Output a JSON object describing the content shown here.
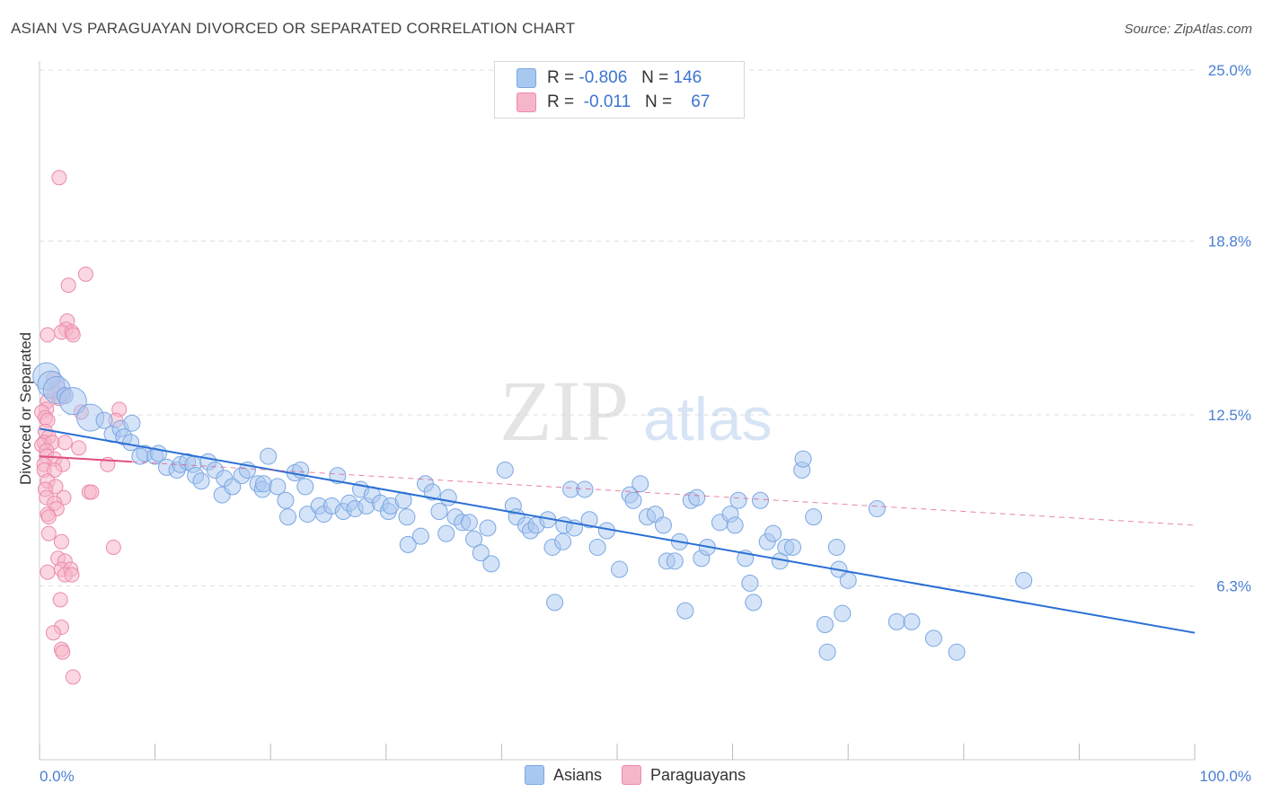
{
  "title": "ASIAN VS PARAGUAYAN DIVORCED OR SEPARATED CORRELATION CHART",
  "source": "Source: ZipAtlas.com",
  "watermark": {
    "zip": "ZIP",
    "atlas": "atlas"
  },
  "legend": {
    "asians": {
      "r_label": "R =",
      "r_value": "-0.806",
      "n_label": "N =",
      "n_value": "146"
    },
    "paraguayans": {
      "r_label": "R =",
      "r_value": "-0.011",
      "n_label": "N =",
      "n_value": "67"
    }
  },
  "bottom_legend": {
    "asians": "Asians",
    "paraguayans": "Paraguayans"
  },
  "colors": {
    "asian_fill": "#a9c8ef",
    "asian_stroke": "#7aa7e3",
    "asian_line": "#2a6fd4",
    "para_fill": "#f6b6c9",
    "para_stroke": "#ec8aab",
    "para_line": "#e0507f",
    "grid": "#dddddd",
    "tick_text": "#4a7fd4"
  },
  "chart_data": {
    "type": "scatter",
    "title": "ASIAN VS PARAGUAYAN DIVORCED OR SEPARATED CORRELATION CHART",
    "xlabel": "",
    "ylabel": "Divorced or Separated",
    "xlim": [
      0,
      100
    ],
    "ylim": [
      0,
      25.6
    ],
    "x_tick_labels": [
      "0.0%",
      "100.0%"
    ],
    "y_ticks": [
      6.3,
      12.5,
      18.8,
      25.0
    ],
    "y_tick_labels": [
      "6.3%",
      "12.5%",
      "18.8%",
      "25.0%"
    ],
    "grid": true,
    "series": [
      {
        "name": "Asians",
        "trend": {
          "x": [
            0,
            100
          ],
          "y": [
            12.0,
            4.6
          ]
        },
        "points": [
          [
            0.6,
            13.9
          ],
          [
            1.0,
            13.6
          ],
          [
            1.5,
            13.4
          ],
          [
            2.2,
            13.2
          ],
          [
            2.9,
            13.0
          ],
          [
            4.4,
            12.4
          ],
          [
            5.6,
            12.3
          ],
          [
            6.3,
            11.8
          ],
          [
            7.0,
            12.0
          ],
          [
            7.3,
            11.7
          ],
          [
            8.0,
            12.2
          ],
          [
            7.9,
            11.5
          ],
          [
            9.1,
            11.1
          ],
          [
            8.7,
            11.0
          ],
          [
            10.0,
            11.0
          ],
          [
            10.3,
            11.1
          ],
          [
            11.0,
            10.6
          ],
          [
            11.9,
            10.5
          ],
          [
            12.2,
            10.7
          ],
          [
            12.8,
            10.8
          ],
          [
            13.3,
            10.7
          ],
          [
            13.5,
            10.3
          ],
          [
            14.0,
            10.1
          ],
          [
            14.6,
            10.8
          ],
          [
            15.2,
            10.5
          ],
          [
            16.0,
            10.2
          ],
          [
            15.8,
            9.6
          ],
          [
            16.7,
            9.9
          ],
          [
            17.5,
            10.3
          ],
          [
            18.0,
            10.5
          ],
          [
            18.9,
            10.0
          ],
          [
            19.3,
            9.8
          ],
          [
            19.4,
            10.0
          ],
          [
            19.8,
            11.0
          ],
          [
            20.6,
            9.9
          ],
          [
            21.3,
            9.4
          ],
          [
            21.5,
            8.8
          ],
          [
            22.1,
            10.4
          ],
          [
            22.6,
            10.5
          ],
          [
            23.0,
            9.9
          ],
          [
            23.2,
            8.9
          ],
          [
            24.2,
            9.2
          ],
          [
            24.6,
            8.9
          ],
          [
            25.3,
            9.2
          ],
          [
            25.8,
            10.3
          ],
          [
            26.3,
            9.0
          ],
          [
            26.8,
            9.3
          ],
          [
            27.3,
            9.1
          ],
          [
            27.8,
            9.8
          ],
          [
            28.3,
            9.2
          ],
          [
            28.8,
            9.6
          ],
          [
            29.5,
            9.3
          ],
          [
            30.2,
            9.0
          ],
          [
            30.4,
            9.2
          ],
          [
            31.5,
            9.4
          ],
          [
            31.8,
            8.8
          ],
          [
            31.9,
            7.8
          ],
          [
            33.0,
            8.1
          ],
          [
            33.4,
            10.0
          ],
          [
            34.0,
            9.7
          ],
          [
            34.6,
            9.0
          ],
          [
            35.2,
            8.2
          ],
          [
            35.4,
            9.5
          ],
          [
            36.0,
            8.8
          ],
          [
            36.6,
            8.6
          ],
          [
            37.2,
            8.6
          ],
          [
            37.6,
            8.0
          ],
          [
            38.2,
            7.5
          ],
          [
            38.8,
            8.4
          ],
          [
            39.1,
            7.1
          ],
          [
            40.3,
            10.5
          ],
          [
            41.0,
            9.2
          ],
          [
            41.3,
            8.8
          ],
          [
            42.1,
            8.5
          ],
          [
            42.5,
            8.3
          ],
          [
            43.0,
            8.5
          ],
          [
            44.0,
            8.7
          ],
          [
            44.4,
            7.7
          ],
          [
            44.6,
            5.7
          ],
          [
            45.3,
            7.9
          ],
          [
            45.4,
            8.5
          ],
          [
            46.0,
            9.8
          ],
          [
            46.3,
            8.4
          ],
          [
            47.2,
            9.8
          ],
          [
            47.6,
            8.7
          ],
          [
            48.3,
            7.7
          ],
          [
            49.1,
            8.3
          ],
          [
            50.2,
            6.9
          ],
          [
            51.1,
            9.6
          ],
          [
            51.4,
            9.4
          ],
          [
            52.0,
            10.0
          ],
          [
            52.6,
            8.8
          ],
          [
            53.3,
            8.9
          ],
          [
            54.0,
            8.5
          ],
          [
            54.3,
            7.2
          ],
          [
            55.0,
            7.2
          ],
          [
            55.4,
            7.9
          ],
          [
            55.9,
            5.4
          ],
          [
            56.4,
            9.4
          ],
          [
            56.9,
            9.5
          ],
          [
            57.3,
            7.3
          ],
          [
            57.8,
            7.7
          ],
          [
            58.9,
            8.6
          ],
          [
            59.8,
            8.9
          ],
          [
            60.2,
            8.5
          ],
          [
            60.5,
            9.4
          ],
          [
            61.1,
            7.3
          ],
          [
            61.5,
            6.4
          ],
          [
            61.8,
            5.7
          ],
          [
            62.4,
            9.4
          ],
          [
            63.0,
            7.9
          ],
          [
            63.5,
            8.2
          ],
          [
            64.1,
            7.2
          ],
          [
            64.6,
            7.7
          ],
          [
            65.2,
            7.7
          ],
          [
            66.0,
            10.5
          ],
          [
            66.1,
            10.9
          ],
          [
            67.0,
            8.8
          ],
          [
            68.0,
            4.9
          ],
          [
            68.2,
            3.9
          ],
          [
            69.0,
            7.7
          ],
          [
            69.2,
            6.9
          ],
          [
            69.5,
            5.3
          ],
          [
            70.0,
            6.5
          ],
          [
            72.5,
            9.1
          ],
          [
            74.2,
            5.0
          ],
          [
            75.5,
            5.0
          ],
          [
            77.4,
            4.4
          ],
          [
            79.4,
            3.9
          ],
          [
            85.2,
            6.5
          ]
        ],
        "large_points": [
          [
            0.6,
            13.9
          ],
          [
            1.0,
            13.6
          ],
          [
            1.5,
            13.4
          ],
          [
            2.9,
            13.0
          ],
          [
            4.4,
            12.4
          ]
        ]
      },
      {
        "name": "Paraguayans",
        "trend": {
          "x": [
            0,
            100
          ],
          "y": [
            11.0,
            8.5
          ]
        },
        "trend_solid_end_x": 8,
        "points": [
          [
            1.7,
            21.1
          ],
          [
            4.0,
            17.6
          ],
          [
            2.5,
            17.2
          ],
          [
            2.4,
            15.9
          ],
          [
            2.3,
            15.6
          ],
          [
            1.9,
            15.5
          ],
          [
            2.8,
            15.5
          ],
          [
            0.7,
            15.4
          ],
          [
            2.9,
            15.4
          ],
          [
            1.2,
            13.8
          ],
          [
            1.6,
            13.5
          ],
          [
            1.3,
            13.3
          ],
          [
            2.1,
            13.2
          ],
          [
            1.7,
            13.1
          ],
          [
            0.7,
            13.0
          ],
          [
            0.6,
            12.7
          ],
          [
            3.6,
            12.6
          ],
          [
            6.9,
            12.7
          ],
          [
            0.2,
            12.6
          ],
          [
            0.5,
            12.4
          ],
          [
            0.7,
            12.3
          ],
          [
            6.6,
            12.3
          ],
          [
            0.5,
            11.9
          ],
          [
            0.8,
            11.7
          ],
          [
            0.4,
            11.5
          ],
          [
            0.2,
            11.4
          ],
          [
            1.1,
            11.5
          ],
          [
            2.2,
            11.5
          ],
          [
            3.4,
            11.3
          ],
          [
            0.6,
            11.2
          ],
          [
            0.6,
            11.0
          ],
          [
            1.3,
            10.9
          ],
          [
            0.4,
            10.7
          ],
          [
            2.0,
            10.7
          ],
          [
            5.9,
            10.7
          ],
          [
            0.4,
            10.5
          ],
          [
            1.3,
            10.5
          ],
          [
            0.7,
            10.1
          ],
          [
            1.4,
            9.9
          ],
          [
            0.5,
            9.8
          ],
          [
            4.3,
            9.7
          ],
          [
            4.5,
            9.7
          ],
          [
            0.6,
            9.5
          ],
          [
            2.1,
            9.5
          ],
          [
            1.3,
            9.3
          ],
          [
            1.5,
            9.1
          ],
          [
            0.7,
            8.9
          ],
          [
            0.8,
            8.8
          ],
          [
            0.8,
            8.2
          ],
          [
            1.9,
            7.9
          ],
          [
            6.4,
            7.7
          ],
          [
            1.6,
            7.3
          ],
          [
            2.2,
            7.2
          ],
          [
            1.9,
            6.9
          ],
          [
            2.7,
            6.9
          ],
          [
            0.7,
            6.8
          ],
          [
            2.2,
            6.7
          ],
          [
            2.8,
            6.7
          ],
          [
            1.8,
            5.8
          ],
          [
            1.9,
            4.8
          ],
          [
            1.2,
            4.6
          ],
          [
            1.9,
            4.0
          ],
          [
            2.0,
            3.9
          ],
          [
            2.9,
            3.0
          ]
        ]
      }
    ]
  }
}
